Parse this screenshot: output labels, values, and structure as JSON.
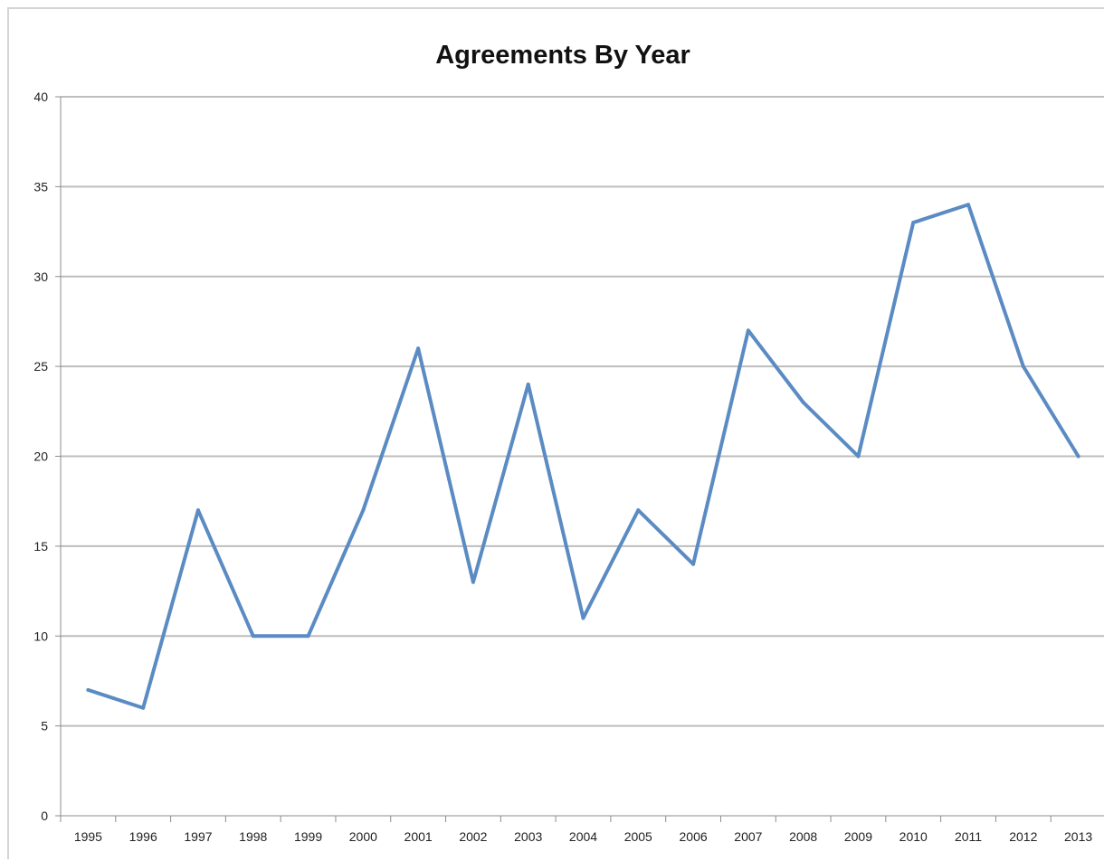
{
  "chart_data": {
    "type": "line",
    "title": "Agreements By Year",
    "xlabel": "",
    "ylabel": "",
    "categories": [
      "1995",
      "1996",
      "1997",
      "1998",
      "1999",
      "2000",
      "2001",
      "2002",
      "2003",
      "2004",
      "2005",
      "2006",
      "2007",
      "2008",
      "2009",
      "2010",
      "2011",
      "2012",
      "2013"
    ],
    "series": [
      {
        "values": [
          7,
          6,
          17,
          10,
          10,
          17,
          26,
          13,
          24,
          11,
          17,
          14,
          27,
          23,
          20,
          33,
          34,
          25,
          20
        ]
      }
    ],
    "ylim": [
      0,
      40
    ],
    "yticks": [
      "0",
      "5",
      "10",
      "15",
      "20",
      "25",
      "30",
      "35",
      "40"
    ],
    "grid": true,
    "legend": "none",
    "colors": {
      "line": "#5b8bc3",
      "grid": "#bdbdbd"
    }
  }
}
